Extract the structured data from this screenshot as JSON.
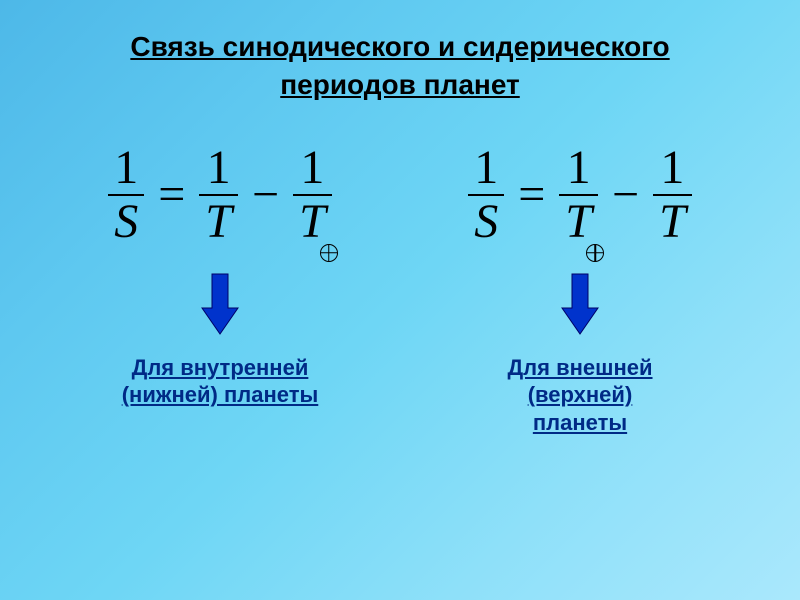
{
  "title": {
    "line1": "Связь синодического и сидерического",
    "line2": "периодов планет",
    "fontsize": 28,
    "color": "#000000"
  },
  "formula": {
    "fontsize": 48,
    "color": "#000000",
    "bar_color": "#000000",
    "left": {
      "frac1": {
        "num": "1",
        "den": "S"
      },
      "op1": "=",
      "frac2": {
        "num": "1",
        "den": "T",
        "earth_subscript": false
      },
      "op2": "−",
      "frac3": {
        "num": "1",
        "den": "T",
        "earth_subscript": true
      }
    },
    "right": {
      "frac1": {
        "num": "1",
        "den": "S"
      },
      "op1": "=",
      "frac2": {
        "num": "1",
        "den": "T",
        "earth_subscript": true
      },
      "op2": "−",
      "frac3": {
        "num": "1",
        "den": "T",
        "earth_subscript": false
      }
    }
  },
  "arrow": {
    "fill": "#0033cc",
    "stroke": "#000066",
    "width": 40,
    "height": 64
  },
  "captions": {
    "left": {
      "line1": "Для внутренней",
      "line2": "(нижней) планеты"
    },
    "right": {
      "line1": "Для внешней",
      "line2": "(верхней)",
      "line3": "планеты"
    },
    "fontsize": 22,
    "color": "#002a86"
  }
}
